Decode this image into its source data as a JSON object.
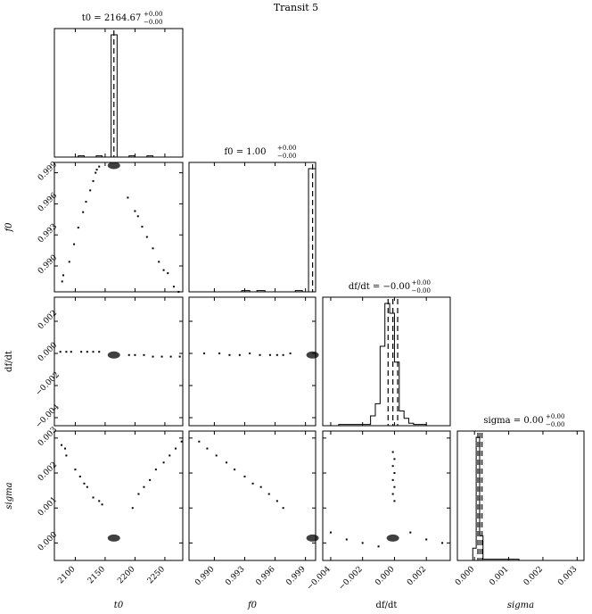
{
  "figure": {
    "title": "Transit 5"
  },
  "chart_data": {
    "type": "corner",
    "title": "Transit 5",
    "parameters": [
      {
        "key": "t0",
        "label": "t0",
        "title": "t0 = 2164.67",
        "title_value": "2164.67",
        "title_sup": "+0.00",
        "title_sub": "−0.00",
        "range": [
          2065,
          2280
        ],
        "ticks": [
          2100,
          2150,
          2200,
          2250
        ],
        "tick_labels": [
          "2100",
          "2150",
          "2200",
          "2250"
        ],
        "quantiles": [
          2164.67
        ]
      },
      {
        "key": "f0",
        "label": "f0",
        "title": "f0 = 1.00",
        "title_value": "1.00",
        "title_sup": "+0.00",
        "title_sub": "−0.00",
        "range": [
          0.9875,
          1.0
        ],
        "ticks": [
          0.99,
          0.993,
          0.996,
          0.999
        ],
        "tick_labels": [
          "0.990",
          "0.993",
          "0.996",
          "0.999"
        ],
        "quantiles": [
          0.9997
        ]
      },
      {
        "key": "dfdt",
        "label": "df/dt",
        "title": "df/dt = −0.00",
        "title_value": "−0.00",
        "title_sup": "+0.00",
        "title_sub": "−0.00",
        "range": [
          -0.0045,
          0.0035
        ],
        "ticks": [
          -0.004,
          -0.002,
          0.0,
          0.002
        ],
        "tick_labels": [
          "−0.004",
          "−0.002",
          "0.000",
          "0.002"
        ],
        "quantiles": [
          -0.0004,
          -0.0001,
          0.0002
        ]
      },
      {
        "key": "sigma",
        "label": "sigma",
        "title": "sigma = 0.00",
        "title_value": "0.00",
        "title_sup": "+0.00",
        "title_sub": "−0.00",
        "range": [
          -0.0005,
          0.0032
        ],
        "ticks": [
          0.0,
          0.001,
          0.002,
          0.003
        ],
        "tick_labels": [
          "0.000",
          "0.001",
          "0.002",
          "0.003"
        ],
        "quantiles": [
          0.0001,
          0.00016,
          0.00022
        ]
      }
    ],
    "histograms": [
      {
        "param": "t0",
        "bins": [
          2065,
          2075,
          2085,
          2095,
          2105,
          2115,
          2125,
          2135,
          2145,
          2155,
          2160,
          2170,
          2180,
          2190,
          2200,
          2210,
          2220,
          2230,
          2240,
          2250,
          2260,
          2270,
          2280
        ],
        "counts": [
          0,
          0,
          0,
          0,
          1,
          0,
          0,
          1,
          0,
          0,
          100,
          0,
          0,
          1,
          0,
          0,
          1,
          0,
          0,
          0,
          0,
          0
        ]
      },
      {
        "param": "f0",
        "bins": [
          0.9875,
          0.9882,
          0.989,
          0.9897,
          0.9905,
          0.9912,
          0.992,
          0.9927,
          0.9935,
          0.9942,
          0.995,
          0.9957,
          0.9965,
          0.9972,
          0.998,
          0.9987,
          0.9993,
          1.0
        ],
        "counts": [
          0,
          0,
          0,
          0,
          0,
          0,
          0,
          1,
          0,
          1,
          0,
          0,
          0,
          0,
          1,
          0,
          100
        ]
      },
      {
        "param": "dfdt",
        "bins": [
          -0.0045,
          -0.0035,
          -0.0025,
          -0.0015,
          -0.0012,
          -0.0009,
          -0.0006,
          -0.0003,
          0.0,
          0.0003,
          0.0006,
          0.0009,
          0.0012,
          0.002,
          0.0035
        ],
        "counts": [
          0,
          1,
          1,
          8,
          18,
          65,
          100,
          92,
          52,
          12,
          6,
          2,
          1,
          0
        ]
      },
      {
        "param": "sigma",
        "bins": [
          -0.0005,
          -5e-05,
          5e-05,
          0.00015,
          0.00025,
          0.0005,
          0.0009,
          0.0013,
          0.002,
          0.0032
        ],
        "counts": [
          0,
          10,
          100,
          20,
          1,
          1,
          1,
          0,
          0
        ]
      }
    ],
    "scatter": [
      {
        "x": "t0",
        "y": "f0",
        "points": [
          [
            2078,
            0.9885
          ],
          [
            2080,
            0.9891
          ],
          [
            2090,
            0.9904
          ],
          [
            2098,
            0.9921
          ],
          [
            2105,
            0.9937
          ],
          [
            2113,
            0.9952
          ],
          [
            2118,
            0.9962
          ],
          [
            2125,
            0.9973
          ],
          [
            2130,
            0.9982
          ],
          [
            2134,
            0.999
          ],
          [
            2136,
            0.9993
          ],
          [
            2140,
            0.9996
          ],
          [
            2188,
            0.9966
          ],
          [
            2200,
            0.9953
          ],
          [
            2205,
            0.9948
          ],
          [
            2212,
            0.9938
          ],
          [
            2220,
            0.9928
          ],
          [
            2230,
            0.9917
          ],
          [
            2240,
            0.9904
          ],
          [
            2248,
            0.9896
          ],
          [
            2255,
            0.9893
          ],
          [
            2265,
            0.988
          ],
          [
            2273,
            0.9875
          ]
        ],
        "core": [
          2164.67,
          0.9997
        ]
      },
      {
        "x": "t0",
        "y": "dfdt",
        "points": [
          [
            2075,
            0.0001
          ],
          [
            2085,
            0.0001
          ],
          [
            2093,
            0.0001
          ],
          [
            2110,
            0.0001
          ],
          [
            2120,
            0.0001
          ],
          [
            2130,
            0.0001
          ],
          [
            2140,
            0.0001
          ],
          [
            2190,
            -0.0001
          ],
          [
            2200,
            -0.0001
          ],
          [
            2215,
            -0.0001
          ],
          [
            2230,
            -0.0002
          ],
          [
            2245,
            -0.0002
          ],
          [
            2260,
            -0.0002
          ],
          [
            2275,
            -0.0002
          ]
        ],
        "core": [
          2164.67,
          -0.0001
        ]
      },
      {
        "x": "t0",
        "y": "sigma",
        "points": [
          [
            2077,
            0.0028
          ],
          [
            2083,
            0.0027
          ],
          [
            2085,
            0.0025
          ],
          [
            2100,
            0.0021
          ],
          [
            2108,
            0.0019
          ],
          [
            2115,
            0.0017
          ],
          [
            2120,
            0.0016
          ],
          [
            2130,
            0.0013
          ],
          [
            2140,
            0.0012
          ],
          [
            2145,
            0.0011
          ],
          [
            2196,
            0.001
          ],
          [
            2206,
            0.0014
          ],
          [
            2215,
            0.0016
          ],
          [
            2225,
            0.0018
          ],
          [
            2235,
            0.0021
          ],
          [
            2248,
            0.0023
          ],
          [
            2258,
            0.0025
          ],
          [
            2268,
            0.0027
          ],
          [
            2278,
            0.0029
          ]
        ],
        "core": [
          2164.67,
          0.00014
        ]
      },
      {
        "x": "f0",
        "y": "dfdt",
        "points": [
          [
            0.989,
            0.0
          ],
          [
            0.9905,
            0.0
          ],
          [
            0.9915,
            -0.0001
          ],
          [
            0.9925,
            -0.0001
          ],
          [
            0.9935,
            0.0
          ],
          [
            0.9945,
            -0.0001
          ],
          [
            0.9955,
            -0.0001
          ],
          [
            0.9962,
            -0.0001
          ],
          [
            0.9968,
            -0.0001
          ],
          [
            0.9975,
            0.0
          ]
        ],
        "core": [
          0.9997,
          -0.0001
        ]
      },
      {
        "x": "f0",
        "y": "sigma",
        "points": [
          [
            0.9885,
            0.0029
          ],
          [
            0.9893,
            0.0027
          ],
          [
            0.9902,
            0.0025
          ],
          [
            0.9912,
            0.0023
          ],
          [
            0.992,
            0.0021
          ],
          [
            0.993,
            0.0019
          ],
          [
            0.9938,
            0.0017
          ],
          [
            0.9946,
            0.0016
          ],
          [
            0.9954,
            0.0014
          ],
          [
            0.9962,
            0.0012
          ],
          [
            0.9968,
            0.001
          ]
        ],
        "core": [
          0.9997,
          0.00014
        ]
      },
      {
        "x": "dfdt",
        "y": "sigma",
        "points": [
          [
            -0.0001,
            0.0026
          ],
          [
            0.0,
            0.0024
          ],
          [
            -0.0001,
            0.0022
          ],
          [
            0.0,
            0.002
          ],
          [
            -0.0001,
            0.0018
          ],
          [
            0.0,
            0.0016
          ],
          [
            -0.0001,
            0.0014
          ],
          [
            0.0,
            0.0012
          ],
          [
            -0.004,
            0.0003
          ],
          [
            -0.003,
            0.0001
          ],
          [
            -0.002,
            0.0
          ],
          [
            -0.001,
            -0.0001
          ],
          [
            0.001,
            0.0003
          ],
          [
            0.002,
            0.0001
          ],
          [
            0.003,
            0.0
          ]
        ],
        "core": [
          -0.0001,
          0.00014
        ]
      }
    ]
  }
}
